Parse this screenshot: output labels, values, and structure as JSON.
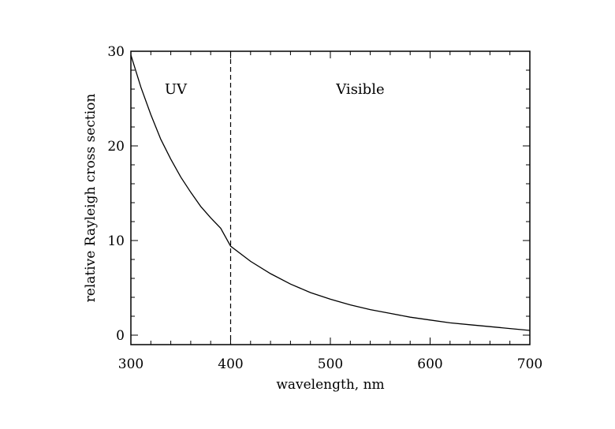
{
  "chart_data": {
    "type": "line",
    "title": "",
    "xlabel": "wavelength, nm",
    "ylabel": "relative Rayleigh cross section",
    "xlim": [
      300,
      700
    ],
    "ylim": [
      -1,
      30
    ],
    "x_ticks": [
      300,
      400,
      500,
      600,
      700
    ],
    "y_ticks": [
      0,
      10,
      20,
      30
    ],
    "grid": false,
    "legend": "none",
    "series": [
      {
        "x": [
          300,
          310,
          320,
          330,
          340,
          350,
          360,
          370,
          380,
          390,
          400,
          420,
          440,
          460,
          480,
          500,
          520,
          540,
          560,
          580,
          600,
          620,
          640,
          660,
          680,
          700
        ],
        "y": [
          29.6,
          26.2,
          23.3,
          20.7,
          18.6,
          16.7,
          15.1,
          13.6,
          12.4,
          11.3,
          9.4,
          7.8,
          6.5,
          5.4,
          4.5,
          3.8,
          3.2,
          2.7,
          2.3,
          1.9,
          1.6,
          1.3,
          1.1,
          0.9,
          0.7,
          0.5
        ]
      }
    ],
    "vline": {
      "x": 400,
      "style": "dashed"
    },
    "annotations": [
      {
        "text": "UV",
        "x": 345,
        "y": 26
      },
      {
        "text": "Visible",
        "x": 530,
        "y": 26
      }
    ]
  }
}
